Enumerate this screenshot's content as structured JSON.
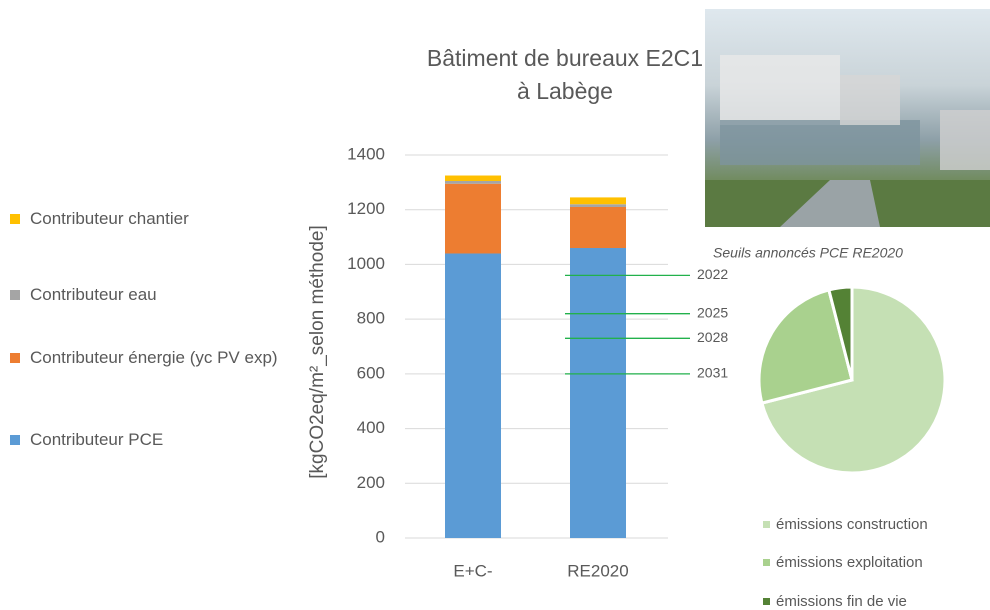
{
  "chart_data": [
    {
      "type": "bar",
      "stacked": true,
      "title": "Bâtiment de bureaux E2C1 à Labège",
      "y_label": "[kgCO2eq/m²_selon méthode]",
      "categories": [
        "E+C-",
        "RE2020"
      ],
      "series": [
        {
          "name": "Contributeur PCE",
          "color": "#5b9bd5",
          "values": [
            1040,
            1060
          ]
        },
        {
          "name": "Contributeur énergie (yc PV exp)",
          "color": "#ed7d31",
          "values": [
            255,
            150
          ]
        },
        {
          "name": "Contributeur eau",
          "color": "#a5a5a5",
          "values": [
            10,
            10
          ]
        },
        {
          "name": "Contributeur chantier",
          "color": "#ffc000",
          "values": [
            20,
            25
          ]
        }
      ],
      "ylim": [
        0,
        1400
      ],
      "yticks": [
        0,
        200,
        400,
        600,
        800,
        1000,
        1200,
        1400
      ],
      "grid": true,
      "annotation": "Seuils annoncés PCE RE2020",
      "threshold_color": "#22b14c",
      "thresholds": [
        {
          "label": "2022",
          "value": 960
        },
        {
          "label": "2025",
          "value": 820
        },
        {
          "label": "2028",
          "value": 730
        },
        {
          "label": "2031",
          "value": 600
        }
      ]
    },
    {
      "type": "pie",
      "categories": [
        "émissions construction",
        "émissions exploitation",
        "émissions fin de vie"
      ],
      "values": [
        71,
        25,
        4
      ],
      "colors": [
        "#c5e0b4",
        "#a9d18e",
        "#548235"
      ]
    }
  ]
}
